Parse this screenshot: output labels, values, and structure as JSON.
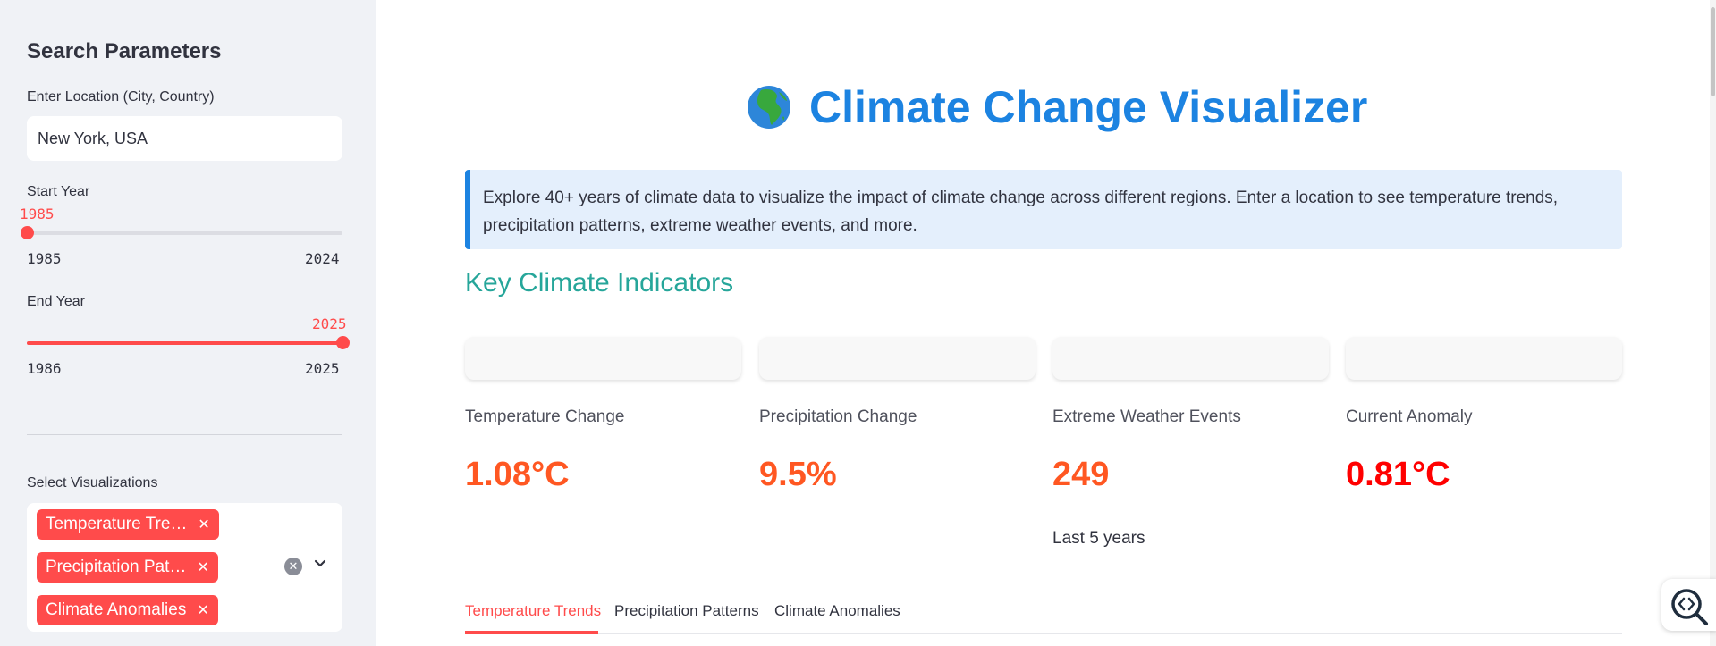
{
  "sidebar": {
    "title": "Search Parameters",
    "location": {
      "label": "Enter Location (City, Country)",
      "value": "New York, USA"
    },
    "start_year": {
      "label": "Start Year",
      "value": "1985",
      "min": "1985",
      "max": "2024",
      "fraction": 0.0
    },
    "end_year": {
      "label": "End Year",
      "value": "2025",
      "min": "1986",
      "max": "2025",
      "fraction": 1.0
    },
    "visualizations": {
      "label": "Select Visualizations",
      "chips": [
        "Temperature Tre…",
        "Precipitation Pat…",
        "Climate Anomalies"
      ]
    }
  },
  "header": {
    "icon": "globe-africa-icon",
    "title": "Climate Change Visualizer"
  },
  "info_text": "Explore 40+ years of climate data to visualize the impact of climate change across different regions. Enter a location to see temperature trends, precipitation patterns, extreme weather events, and more.",
  "section_title": "Key Climate Indicators",
  "metrics": [
    {
      "label": "Temperature Change",
      "value": "1.08°C",
      "sub": "",
      "color": "#ff5722"
    },
    {
      "label": "Precipitation Change",
      "value": "9.5%",
      "sub": "",
      "color": "#ff5722"
    },
    {
      "label": "Extreme Weather Events",
      "value": "249",
      "sub": "Last 5 years",
      "color": "#ff5722"
    },
    {
      "label": "Current Anomaly",
      "value": "0.81°C",
      "sub": "",
      "color": "#ff0000"
    }
  ],
  "tabs": [
    "Temperature Trends",
    "Precipitation Patterns",
    "Climate Anomalies"
  ],
  "colors": {
    "accent": "#ff4b4b",
    "title": "#1c83e1",
    "section": "#26a69a"
  }
}
